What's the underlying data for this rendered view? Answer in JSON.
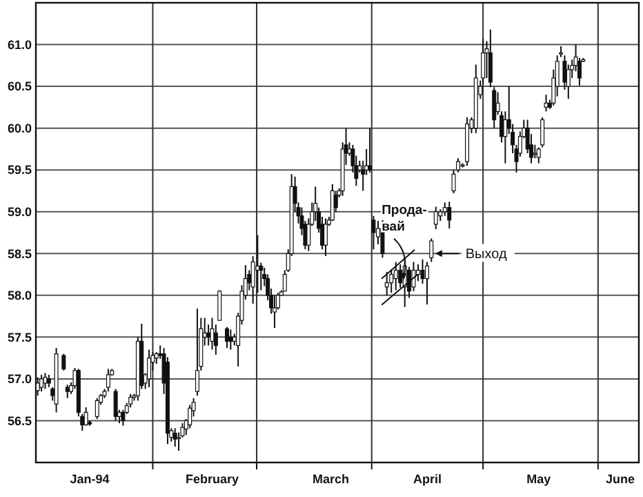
{
  "chart_data": {
    "type": "candlestick",
    "x": [
      "1994-01-01",
      "1994-01-02",
      "1994-01-03",
      "1994-01-04",
      "1994-01-05",
      "1994-01-06",
      "1994-01-08",
      "1994-01-09",
      "1994-01-10",
      "1994-01-11",
      "1994-01-12",
      "1994-01-13",
      "1994-01-14",
      "1994-01-15",
      "1994-01-17",
      "1994-01-18",
      "1994-01-19",
      "1994-01-20",
      "1994-01-21",
      "1994-01-22",
      "1994-01-23",
      "1994-01-24",
      "1994-01-25",
      "1994-01-26",
      "1994-01-27",
      "1994-01-28",
      "1994-01-29",
      "1994-01-30",
      "1994-01-31",
      "1994-02-01",
      "1994-02-02",
      "1994-02-03",
      "1994-02-04",
      "1994-02-05",
      "1994-02-06",
      "1994-02-07",
      "1994-02-08",
      "1994-02-09",
      "1994-02-10",
      "1994-02-11",
      "1994-02-12",
      "1994-02-13",
      "1994-02-14",
      "1994-02-15",
      "1994-02-16",
      "1994-02-17",
      "1994-02-18",
      "1994-02-19",
      "1994-02-21",
      "1994-02-22",
      "1994-02-23",
      "1994-02-24",
      "1994-02-25",
      "1994-02-26",
      "1994-02-27",
      "1994-02-28",
      "1994-03-01T06:00",
      "1994-03-02T04:00",
      "1994-03-03T02:00",
      "1994-03-04T00:00",
      "1994-03-04T22:00",
      "1994-03-05T20:00",
      "1994-03-06T18:00",
      "1994-03-07T16:00",
      "1994-03-08T14:00",
      "1994-03-09T12:00",
      "1994-03-10T10:00",
      "1994-03-11T08:00",
      "1994-03-12T06:00",
      "1994-03-13T04:00",
      "1994-03-14T02:00",
      "1994-03-15T00:00",
      "1994-03-15T22:00",
      "1994-03-16T20:00",
      "1994-03-17T18:00",
      "1994-03-18T16:00",
      "1994-03-19T14:00",
      "1994-03-20T12:00",
      "1994-03-21T10:00",
      "1994-03-22T08:00",
      "1994-03-23T06:00",
      "1994-03-24T04:00",
      "1994-03-25T02:00",
      "1994-03-26T00:00",
      "1994-03-26T22:00",
      "1994-03-27T20:00",
      "1994-03-28T18:00",
      "1994-03-29T16:00",
      "1994-03-30T14:00",
      "1994-03-31T12:00",
      "1994-04-01T12:00",
      "1994-04-02T17:00",
      "1994-04-03T22:00",
      "1994-04-05T02:00",
      "1994-04-06T07:00",
      "1994-04-07T12:00",
      "1994-04-08T17:00",
      "1994-04-09T22:00",
      "1994-04-11T02:00",
      "1994-04-12T07:00",
      "1994-04-13T12:00",
      "1994-04-14T17:00",
      "1994-04-15T22:00",
      "1994-04-17T02:00",
      "1994-04-18T07:00",
      "1994-04-19T12:00",
      "1994-04-20T17:00",
      "1994-04-21T22:00",
      "1994-04-23T02:00",
      "1994-04-24T07:00",
      "1994-04-25T12:00",
      "1994-04-26T17:00",
      "1994-04-27T22:00",
      "1994-04-29T02:00",
      "1994-04-30T07:00",
      "1994-05-01",
      "1994-05-02",
      "1994-05-03",
      "1994-05-04",
      "1994-05-05",
      "1994-05-06",
      "1994-05-07",
      "1994-05-08",
      "1994-05-09",
      "1994-05-10",
      "1994-05-11",
      "1994-05-12",
      "1994-05-13",
      "1994-05-14",
      "1994-05-15",
      "1994-05-16",
      "1994-05-17",
      "1994-05-18",
      "1994-05-19",
      "1994-05-20",
      "1994-05-21",
      "1994-05-22",
      "1994-05-23",
      "1994-05-24",
      "1994-05-25",
      "1994-05-26",
      "1994-05-27",
      "1994-05-28"
    ],
    "ohlc": [
      [
        56.86,
        57.02,
        56.8,
        56.95
      ],
      [
        56.9,
        57.05,
        56.85,
        57.0
      ],
      [
        56.95,
        57.07,
        56.88,
        57.02
      ],
      [
        57.0,
        57.05,
        56.9,
        56.95
      ],
      [
        56.88,
        56.9,
        56.74,
        56.8
      ],
      [
        56.7,
        57.37,
        56.6,
        57.3
      ],
      [
        57.28,
        57.3,
        57.1,
        57.12
      ],
      [
        56.9,
        56.93,
        56.77,
        56.85
      ],
      [
        56.85,
        56.96,
        56.82,
        56.92
      ],
      [
        56.92,
        57.13,
        56.88,
        57.1
      ],
      [
        57.1,
        57.12,
        56.55,
        56.6
      ],
      [
        56.55,
        56.58,
        56.38,
        56.45
      ],
      [
        56.45,
        56.66,
        56.44,
        56.6
      ],
      [
        56.48,
        56.5,
        56.44,
        56.46
      ],
      [
        56.55,
        56.77,
        56.52,
        56.74
      ],
      [
        56.72,
        56.82,
        56.69,
        56.8
      ],
      [
        56.8,
        56.88,
        56.77,
        56.85
      ],
      [
        56.9,
        57.12,
        56.85,
        57.05
      ],
      [
        57.05,
        57.12,
        57.04,
        57.1
      ],
      [
        56.85,
        56.88,
        56.5,
        56.55
      ],
      [
        56.55,
        56.63,
        56.47,
        56.6
      ],
      [
        56.6,
        56.63,
        56.44,
        56.5
      ],
      [
        56.6,
        56.71,
        56.58,
        56.68
      ],
      [
        56.7,
        56.82,
        56.66,
        56.78
      ],
      [
        56.78,
        56.82,
        56.74,
        56.8
      ],
      [
        56.8,
        57.5,
        56.74,
        57.45
      ],
      [
        57.45,
        57.66,
        56.88,
        56.92
      ],
      [
        56.95,
        57.07,
        56.88,
        57.05
      ],
      [
        57.0,
        57.35,
        56.9,
        57.25
      ],
      [
        57.2,
        57.32,
        57.1,
        57.28
      ],
      [
        57.25,
        57.32,
        57.18,
        57.3
      ],
      [
        57.3,
        57.4,
        57.24,
        57.28
      ],
      [
        57.3,
        57.37,
        56.82,
        56.95
      ],
      [
        57.2,
        57.26,
        56.22,
        56.35
      ],
      [
        56.3,
        56.41,
        56.25,
        56.38
      ],
      [
        56.35,
        56.41,
        56.19,
        56.28
      ],
      [
        56.3,
        56.36,
        56.14,
        56.3
      ],
      [
        56.32,
        56.47,
        56.3,
        56.42
      ],
      [
        56.4,
        56.52,
        56.33,
        56.5
      ],
      [
        56.45,
        56.69,
        56.41,
        56.65
      ],
      [
        56.62,
        56.77,
        56.55,
        56.72
      ],
      [
        56.85,
        57.84,
        56.8,
        57.1
      ],
      [
        57.15,
        57.73,
        57.1,
        57.6
      ],
      [
        57.5,
        57.73,
        57.4,
        57.55
      ],
      [
        57.55,
        57.65,
        57.4,
        57.5
      ],
      [
        57.45,
        57.73,
        57.35,
        57.6
      ],
      [
        57.55,
        57.65,
        57.29,
        57.4
      ],
      [
        57.7,
        58.06,
        57.7,
        58.05
      ],
      [
        57.6,
        57.62,
        57.37,
        57.45
      ],
      [
        57.5,
        57.59,
        57.35,
        57.45
      ],
      [
        57.45,
        57.54,
        57.4,
        57.5
      ],
      [
        57.4,
        57.79,
        57.15,
        57.75
      ],
      [
        57.7,
        58.12,
        57.65,
        58.05
      ],
      [
        58.0,
        58.36,
        57.95,
        58.2
      ],
      [
        58.25,
        58.3,
        58.06,
        58.15
      ],
      [
        58.1,
        58.47,
        57.9,
        58.4
      ],
      [
        58.3,
        58.72,
        58.03,
        58.35
      ],
      [
        58.35,
        58.39,
        58.06,
        58.3
      ],
      [
        58.25,
        58.33,
        58.11,
        58.2
      ],
      [
        58.2,
        58.25,
        57.94,
        58.0
      ],
      [
        58.0,
        58.08,
        57.78,
        57.85
      ],
      [
        57.8,
        58.0,
        57.61,
        57.85
      ],
      [
        57.85,
        58.03,
        57.83,
        58.0
      ],
      [
        58.0,
        58.06,
        58.0,
        58.04
      ],
      [
        58.05,
        58.3,
        58.05,
        58.25
      ],
      [
        58.3,
        58.55,
        58.28,
        58.5
      ],
      [
        58.5,
        59.45,
        58.47,
        59.3
      ],
      [
        59.3,
        59.42,
        59.0,
        59.1
      ],
      [
        59.05,
        59.11,
        58.86,
        58.95
      ],
      [
        58.95,
        59.05,
        58.72,
        58.8
      ],
      [
        58.85,
        58.89,
        58.55,
        58.6
      ],
      [
        58.6,
        58.92,
        58.53,
        58.85
      ],
      [
        58.85,
        59.11,
        58.83,
        59.0
      ],
      [
        59.0,
        59.3,
        58.89,
        59.1
      ],
      [
        59.0,
        59.05,
        58.75,
        58.8
      ],
      [
        58.85,
        58.94,
        58.55,
        58.6
      ],
      [
        58.6,
        58.92,
        58.47,
        58.85
      ],
      [
        58.85,
        58.94,
        58.83,
        58.9
      ],
      [
        58.9,
        59.33,
        58.89,
        59.25
      ],
      [
        59.2,
        59.25,
        59.0,
        59.05
      ],
      [
        59.2,
        59.28,
        59.17,
        59.25
      ],
      [
        59.25,
        59.83,
        59.19,
        59.75
      ],
      [
        59.8,
        60.0,
        59.56,
        59.7
      ],
      [
        59.7,
        59.83,
        59.67,
        59.75
      ],
      [
        59.75,
        59.8,
        59.47,
        59.55
      ],
      [
        59.55,
        59.67,
        59.31,
        59.4
      ],
      [
        59.5,
        59.61,
        59.47,
        59.55
      ],
      [
        59.5,
        59.61,
        59.25,
        59.45
      ],
      [
        59.5,
        59.75,
        59.44,
        59.55
      ],
      [
        59.55,
        60.0,
        59.47,
        59.5
      ],
      [
        58.9,
        58.95,
        58.55,
        58.75
      ],
      [
        58.7,
        58.89,
        58.61,
        58.8
      ],
      [
        58.8,
        58.9,
        58.45,
        58.5
      ],
      [
        58.1,
        58.28,
        58.0,
        58.15
      ],
      [
        58.15,
        58.31,
        58.03,
        58.25
      ],
      [
        58.2,
        58.4,
        58.06,
        58.3
      ],
      [
        58.3,
        58.37,
        58.09,
        58.15
      ],
      [
        58.1,
        58.43,
        57.86,
        58.35
      ],
      [
        58.3,
        58.34,
        57.97,
        58.05
      ],
      [
        58.1,
        58.4,
        58.05,
        58.3
      ],
      [
        58.25,
        58.37,
        58.17,
        58.3
      ],
      [
        58.3,
        58.43,
        58.14,
        58.2
      ],
      [
        58.2,
        58.4,
        57.89,
        58.35
      ],
      [
        58.45,
        58.68,
        58.4,
        58.65
      ],
      [
        58.85,
        59.06,
        58.79,
        59.0
      ],
      [
        58.95,
        59.03,
        58.89,
        59.0
      ],
      [
        59.0,
        59.11,
        58.95,
        59.05
      ],
      [
        59.05,
        59.12,
        58.8,
        58.9
      ],
      [
        59.25,
        59.5,
        59.22,
        59.45
      ],
      [
        59.5,
        59.64,
        59.47,
        59.6
      ],
      [
        59.55,
        59.58,
        59.53,
        59.56
      ],
      [
        59.6,
        60.13,
        59.55,
        60.05
      ],
      [
        60.0,
        60.13,
        59.94,
        60.1
      ],
      [
        60.0,
        60.76,
        59.94,
        60.6
      ],
      [
        60.4,
        60.57,
        60.35,
        60.5
      ],
      [
        60.6,
        61.07,
        60.52,
        60.9
      ],
      [
        60.9,
        61.04,
        60.6,
        60.95
      ],
      [
        60.9,
        61.18,
        60.49,
        60.55
      ],
      [
        60.45,
        60.49,
        60.0,
        60.1
      ],
      [
        60.2,
        60.43,
        60.16,
        60.3
      ],
      [
        60.15,
        60.2,
        59.83,
        59.9
      ],
      [
        59.9,
        60.2,
        59.58,
        60.1
      ],
      [
        60.1,
        60.5,
        59.93,
        60.0
      ],
      [
        59.95,
        60.05,
        59.7,
        59.8
      ],
      [
        59.75,
        59.8,
        59.47,
        59.6
      ],
      [
        59.7,
        59.96,
        59.66,
        59.9
      ],
      [
        59.9,
        60.1,
        59.88,
        60.0
      ],
      [
        60.0,
        60.1,
        59.7,
        59.75
      ],
      [
        59.8,
        59.93,
        59.58,
        59.65
      ],
      [
        59.7,
        59.8,
        59.64,
        59.7
      ],
      [
        59.65,
        59.77,
        59.58,
        59.75
      ],
      [
        59.8,
        60.13,
        59.77,
        60.1
      ],
      [
        60.25,
        60.4,
        60.2,
        60.3
      ],
      [
        60.3,
        60.34,
        60.23,
        60.25
      ],
      [
        60.3,
        60.7,
        60.27,
        60.6
      ],
      [
        60.5,
        60.87,
        60.38,
        60.8
      ],
      [
        60.9,
        60.98,
        60.85,
        60.9
      ],
      [
        60.8,
        60.87,
        60.46,
        60.55
      ],
      [
        60.5,
        60.76,
        60.35,
        60.7
      ],
      [
        60.7,
        60.82,
        60.6,
        60.75
      ],
      [
        60.75,
        61.0,
        60.68,
        60.85
      ],
      [
        60.8,
        60.84,
        60.51,
        60.6
      ],
      [
        60.8,
        60.84,
        60.79,
        60.82
      ]
    ],
    "xlim": [
      "1993-12-31T12:00",
      "1994-06-12"
    ],
    "xticks": [
      {
        "value": "1994-02-01",
        "label": null
      },
      {
        "value": "1994-03-01",
        "label": null
      },
      {
        "value": "1994-04-01",
        "label": null
      },
      {
        "value": "1994-05-01",
        "label": null
      },
      {
        "value": "1994-06-01",
        "label": null
      },
      {
        "value": "1994-01-15",
        "label": "Jan-94"
      },
      {
        "value": "1994-02-17",
        "label": "February"
      },
      {
        "value": "1994-03-21",
        "label": "March"
      },
      {
        "value": "1994-04-16",
        "label": "April"
      },
      {
        "value": "1994-05-16",
        "label": "May"
      },
      {
        "value": "1994-06-07",
        "label": "June"
      }
    ],
    "ylim": [
      56.0,
      61.5
    ],
    "yticks": [
      {
        "value": 56.5,
        "label": "56.5"
      },
      {
        "value": 57,
        "label": "57.0"
      },
      {
        "value": 57.5,
        "label": "57.5"
      },
      {
        "value": 58,
        "label": "58.0"
      },
      {
        "value": 58.5,
        "label": "58.5"
      },
      {
        "value": 59,
        "label": "59.0"
      },
      {
        "value": 59.5,
        "label": "59.5"
      },
      {
        "value": 60,
        "label": "60.0"
      },
      {
        "value": 60.5,
        "label": "60.5"
      },
      {
        "value": 61,
        "label": "61.0"
      }
    ],
    "grid": true,
    "annotations": [
      {
        "text": "Прода-\nвай",
        "x": "1994-04-10",
        "y": 58.15
      },
      {
        "text": "Выход",
        "x": "1994-04-17",
        "y": 58.5
      }
    ]
  }
}
